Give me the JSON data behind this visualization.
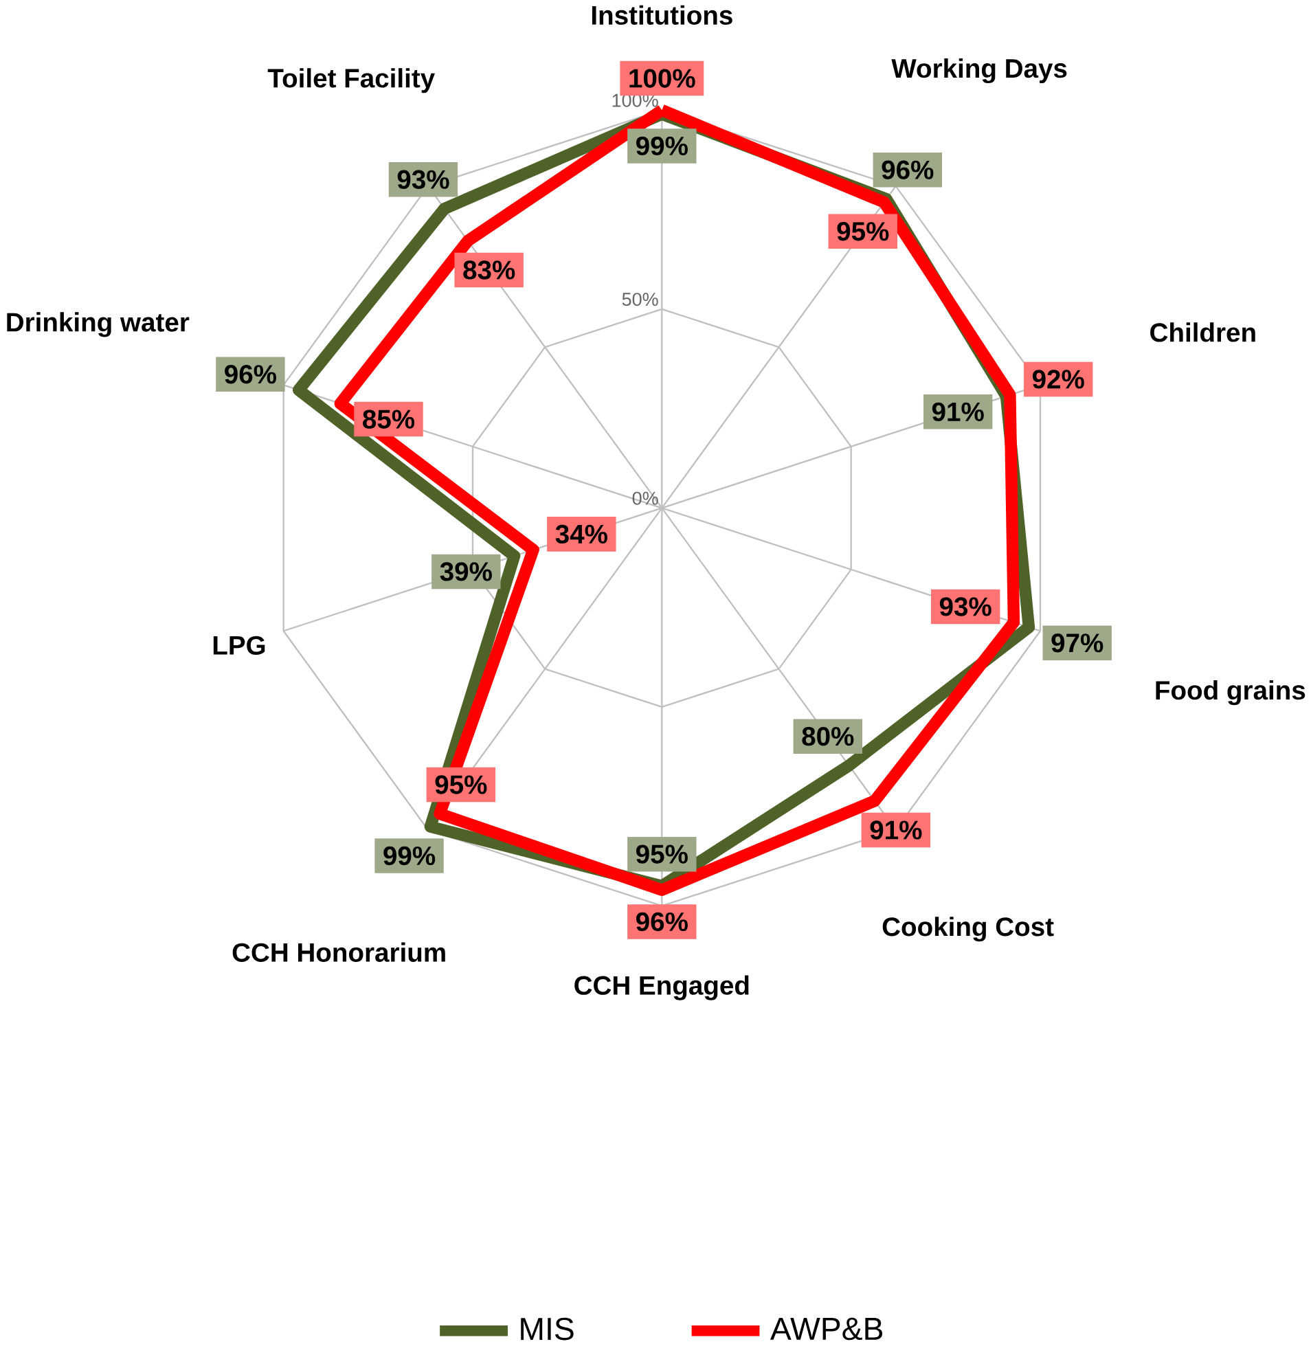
{
  "chart_data": {
    "type": "radar",
    "categories": [
      "Institutions",
      "Working Days",
      "Children",
      "Food grains",
      "Cooking Cost",
      "CCH Engaged",
      "CCH Honorarium",
      "LPG",
      "Drinking water",
      "Toilet Facility"
    ],
    "series": [
      {
        "name": "MIS",
        "color": "#4f6228",
        "values": [
          99,
          96,
          91,
          97,
          80,
          95,
          99,
          39,
          96,
          93
        ],
        "value_labels": [
          "99%",
          "96%",
          "91%",
          "97%",
          "80%",
          "95%",
          "99%",
          "39%",
          "96%",
          "93%"
        ]
      },
      {
        "name": "AWP&B",
        "color": "#ff0000",
        "values": [
          100,
          95,
          92,
          93,
          91,
          96,
          95,
          34,
          85,
          83
        ],
        "value_labels": [
          "100%",
          "95%",
          "92%",
          "93%",
          "91%",
          "96%",
          "95%",
          "34%",
          "85%",
          "83%"
        ]
      }
    ],
    "ylim": [
      0,
      100
    ],
    "yticks": [
      {
        "value": 0,
        "label": "0%"
      },
      {
        "value": 50,
        "label": "50%"
      },
      {
        "value": 100,
        "label": "100%"
      }
    ],
    "grid": true,
    "legend": "bottom",
    "marker": "none",
    "line_style": "solid"
  }
}
